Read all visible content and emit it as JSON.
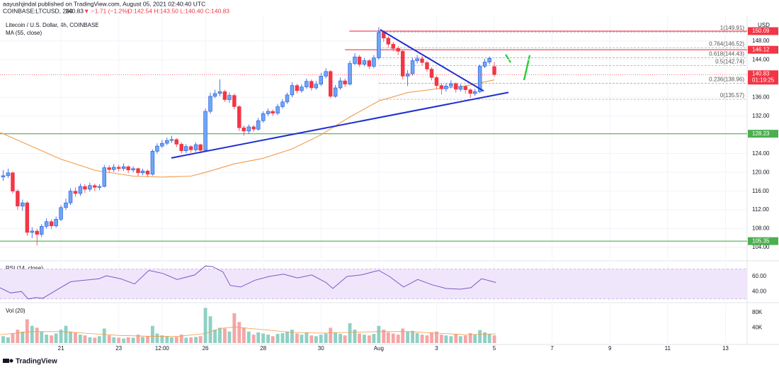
{
  "header": {
    "publisher": "aayushjindal published on TradingView.com, August 05, 2021 02:40:40 UTC",
    "symbol": "COINBASE:LTCUSD, 240",
    "price": "140.83",
    "change": "▼ −1.71 (−1.2%)",
    "ohlc": "O:142.54  H:143.50  L:140.40  C:140.83"
  },
  "footer": "TradingView",
  "chart_data": {
    "type": "candlestick",
    "title": "Litecoin / U.S. Dollar, 4h, COINBASE",
    "currency": "USD",
    "up_color": "#6ea6f2",
    "up_border": "#1e53e5",
    "down_color": "#f23645",
    "x": [
      19,
      19.17,
      19.33,
      19.5,
      19.67,
      19.83,
      20,
      20.17,
      20.33,
      20.5,
      20.67,
      20.83,
      21,
      21.17,
      21.33,
      21.5,
      21.67,
      21.83,
      22,
      22.17,
      22.33,
      22.5,
      22.67,
      22.83,
      23,
      23.17,
      23.33,
      23.5,
      23.67,
      23.83,
      24,
      24.17,
      24.33,
      24.5,
      24.67,
      24.83,
      25,
      25.17,
      25.33,
      25.5,
      25.67,
      25.83,
      26,
      26.17,
      26.33,
      26.5,
      26.67,
      26.83,
      27,
      27.17,
      27.33,
      27.5,
      27.67,
      27.83,
      28,
      28.17,
      28.33,
      28.5,
      28.67,
      28.83,
      29,
      29.17,
      29.33,
      29.5,
      29.67,
      29.83,
      30,
      30.17,
      30.33,
      30.5,
      30.67,
      30.83,
      31,
      31.17,
      31.33,
      31.5,
      31.67,
      31.83,
      32,
      32.17,
      32.33,
      32.5,
      32.67,
      32.83,
      33,
      33.17,
      33.33,
      33.5,
      33.67,
      33.83,
      34,
      34.17,
      34.33,
      34.5,
      34.67,
      34.83,
      35,
      35.17,
      35.33,
      35.5,
      35.67,
      35.83,
      36
    ],
    "open": [
      119.0,
      119.3,
      119.9,
      116.0,
      112.8,
      113.5,
      107.2,
      107.5,
      106.8,
      108.5,
      109.5,
      108.6,
      110.0,
      112.5,
      113.5,
      116.0,
      115.5,
      117.0,
      116.4,
      117.2,
      116.8,
      117.0,
      121.0,
      120.6,
      121.1,
      120.8,
      121.2,
      120.5,
      120.8,
      119.9,
      120.3,
      119.6,
      124.5,
      125.6,
      126.2,
      126.8,
      127.0,
      126.0,
      124.6,
      125.5,
      124.8,
      125.9,
      124.7,
      133.0,
      136.2,
      136.8,
      137.2,
      135.5,
      136.4,
      134.0,
      129.5,
      128.8,
      129.7,
      129.2,
      131.0,
      132.5,
      133.0,
      132.6,
      134.0,
      135.0,
      136.5,
      138.5,
      137.4,
      138.2,
      139.4,
      138.0,
      138.8,
      140.5,
      141.5,
      136.2,
      138.0,
      139.5,
      138.8,
      143.2,
      144.6,
      143.0,
      143.8,
      142.6,
      144.4,
      149.8,
      148.6,
      147.3,
      146.4,
      145.8,
      140.5,
      141.0,
      143.8,
      144.2,
      143.4,
      142.0,
      140.2,
      138.5,
      137.8,
      138.4,
      138.9,
      137.7,
      138.3,
      137.6,
      136.8,
      137.2,
      142.6,
      143.5,
      142.54
    ],
    "high": [
      120.5,
      120.8,
      120.2,
      116.4,
      114.2,
      113.9,
      108.3,
      108.0,
      109.0,
      110.2,
      110.0,
      110.6,
      113.0,
      114.4,
      116.6,
      116.8,
      117.6,
      117.5,
      117.8,
      117.6,
      117.5,
      121.6,
      121.5,
      121.8,
      121.6,
      121.9,
      121.5,
      121.3,
      121.0,
      120.8,
      120.6,
      124.9,
      126.2,
      126.9,
      127.4,
      127.8,
      127.3,
      126.4,
      126.0,
      125.8,
      126.4,
      126.1,
      133.6,
      137.0,
      137.6,
      139.8,
      137.6,
      137.0,
      136.8,
      134.3,
      130.0,
      130.2,
      130.1,
      131.6,
      133.0,
      133.6,
      133.4,
      134.6,
      135.6,
      137.0,
      139.2,
      138.9,
      138.8,
      140.0,
      139.8,
      139.5,
      141.2,
      142.2,
      141.8,
      138.6,
      140.2,
      140.0,
      143.8,
      145.4,
      145.0,
      144.4,
      144.1,
      145.0,
      150.9,
      150.2,
      149.0,
      147.8,
      146.9,
      146.2,
      141.8,
      144.4,
      145.0,
      144.8,
      143.8,
      142.4,
      140.6,
      139.0,
      139.0,
      139.6,
      139.2,
      138.8,
      138.6,
      137.9,
      137.8,
      143.0,
      144.2,
      144.7,
      143.5
    ],
    "low": [
      118.2,
      118.8,
      115.5,
      112.0,
      111.8,
      106.5,
      106.0,
      104.4,
      106.2,
      108.0,
      107.9,
      108.2,
      109.6,
      112.0,
      113.0,
      114.8,
      115.0,
      115.6,
      115.9,
      116.0,
      116.2,
      116.8,
      120.0,
      120.1,
      120.2,
      120.3,
      119.8,
      120.0,
      119.2,
      119.4,
      119.0,
      119.3,
      124.0,
      125.2,
      125.8,
      126.3,
      125.4,
      124.0,
      124.1,
      124.2,
      124.4,
      124.2,
      124.5,
      132.5,
      135.8,
      136.2,
      135.0,
      134.8,
      133.4,
      128.8,
      127.8,
      128.2,
      128.6,
      128.9,
      130.6,
      132.0,
      132.0,
      132.2,
      133.6,
      134.6,
      136.0,
      136.8,
      137.0,
      137.8,
      137.4,
      137.6,
      138.4,
      140.0,
      135.8,
      135.9,
      137.6,
      138.2,
      138.5,
      142.8,
      142.5,
      142.6,
      142.0,
      142.2,
      144.0,
      147.8,
      146.6,
      145.8,
      145.0,
      139.8,
      138.4,
      140.6,
      143.2,
      142.8,
      141.4,
      139.6,
      137.8,
      136.6,
      137.2,
      137.9,
      137.0,
      137.2,
      136.8,
      135.9,
      136.3,
      136.9,
      142.2,
      143.0,
      140.4
    ],
    "close": [
      119.3,
      119.9,
      116.0,
      112.8,
      113.5,
      107.2,
      107.5,
      106.8,
      108.5,
      109.5,
      108.6,
      110.0,
      112.5,
      113.5,
      116.0,
      115.5,
      117.0,
      116.4,
      117.2,
      116.8,
      117.0,
      121.0,
      120.6,
      121.1,
      120.8,
      121.2,
      120.5,
      120.8,
      119.9,
      120.3,
      119.6,
      124.5,
      125.6,
      126.2,
      126.8,
      127.0,
      126.0,
      124.6,
      125.5,
      124.8,
      125.9,
      124.7,
      133.0,
      136.2,
      136.8,
      137.2,
      135.5,
      136.4,
      134.0,
      129.5,
      128.8,
      129.7,
      129.2,
      131.0,
      132.5,
      133.0,
      132.6,
      134.0,
      135.0,
      136.5,
      138.5,
      137.4,
      138.2,
      139.4,
      138.0,
      138.8,
      140.5,
      141.5,
      136.2,
      138.0,
      139.5,
      138.8,
      143.2,
      144.6,
      143.0,
      143.8,
      142.6,
      144.4,
      149.8,
      148.6,
      147.3,
      146.4,
      145.8,
      140.5,
      141.0,
      143.8,
      144.2,
      143.4,
      142.0,
      140.2,
      138.5,
      137.8,
      138.4,
      138.9,
      137.7,
      138.3,
      137.6,
      136.8,
      137.2,
      142.6,
      143.5,
      144.3,
      140.83
    ],
    "xlim": [
      18.89,
      44.75
    ],
    "xticks": [
      21,
      23,
      {
        "value": 24.5,
        "label": "12:00"
      },
      26,
      28,
      30,
      {
        "value": 32,
        "label": "Aug"
      },
      {
        "value": 34,
        "label": "3"
      },
      {
        "value": 36,
        "label": "5"
      },
      {
        "value": 38,
        "label": "7"
      },
      {
        "value": 40,
        "label": "9"
      },
      {
        "value": 42,
        "label": "11"
      },
      {
        "value": 44,
        "label": "13"
      }
    ],
    "ylim": [
      101.6,
      153.4
    ],
    "yticks": [
      {
        "value": 104,
        "label": "104.00"
      },
      {
        "value": 108,
        "label": "108.00"
      },
      {
        "value": 112,
        "label": "112.00"
      },
      {
        "value": 116,
        "label": "116.00"
      },
      {
        "value": 120,
        "label": "120.00"
      },
      {
        "value": 124,
        "label": "124.00"
      },
      {
        "value": 132,
        "label": "132.00"
      },
      {
        "value": 136,
        "label": "136.00"
      },
      {
        "value": 144,
        "label": "144.00"
      },
      {
        "value": 148,
        "label": "148.00"
      }
    ],
    "grid": true,
    "ma": {
      "name": "MA (55, close)",
      "color": "#f29b4a",
      "x": [
        18.9,
        20,
        21,
        22.2,
        23.5,
        24.5,
        25.5,
        26,
        27,
        28,
        29,
        30,
        31,
        32,
        33,
        34,
        35,
        36
      ],
      "values": [
        128.5,
        125.5,
        122.8,
        120.4,
        119.2,
        119.0,
        119.2,
        120.0,
        121.8,
        123.0,
        125.0,
        128.0,
        131.8,
        135.2,
        137.0,
        137.8,
        138.4,
        139.7
      ]
    },
    "trendlines": [
      {
        "color": "#1f2fd1",
        "x": [
          24.82,
          36.49
        ],
        "values": [
          123.07,
          137.03
        ]
      },
      {
        "color": "#1f2fd1",
        "x": [
          32.05,
          35.63
        ],
        "values": [
          150.4,
          137.33
        ]
      }
    ],
    "levels": [
      {
        "value": 150.09,
        "color": "#f23645",
        "start": 30.98
      },
      {
        "value": 146.12,
        "color": "#f23645",
        "start": 30.83
      },
      {
        "value": 128.23,
        "color": "#4caf50",
        "start": 18.89
      },
      {
        "value": 105.35,
        "color": "#4caf50",
        "start": 18.89
      }
    ],
    "fib": {
      "start": 32.0,
      "color": "#9598a1",
      "levels": [
        {
          "value": 149.91,
          "label": "1(149.91)"
        },
        {
          "value": 146.52,
          "label": "0.764(146.52)"
        },
        {
          "value": 144.43,
          "label": "0.618(144.43)"
        },
        {
          "value": 142.74,
          "label": "0.5(142.74)"
        },
        {
          "value": 138.96,
          "label": "0.236(138.96)"
        },
        {
          "value": 135.57,
          "label": "0(135.57)"
        }
      ]
    },
    "last": {
      "value": 140.83,
      "countdown": "01:19:25",
      "color": "#f23645"
    },
    "rsi": {
      "name": "RSI (14, close)",
      "color": "#7e57c2",
      "band_color": "#efe6fc",
      "band": [
        30,
        70
      ],
      "ylim": [
        27,
        77
      ],
      "yticks": [
        {
          "value": 40,
          "label": "40.00"
        },
        {
          "value": 60,
          "label": "60.00"
        }
      ],
      "x": [
        18.89,
        19.26,
        19.63,
        19.87,
        20.12,
        20.37,
        20.85,
        21.34,
        21.83,
        22.32,
        22.57,
        23.06,
        23.55,
        24.04,
        24.53,
        25.02,
        25.63,
        26.0,
        26.25,
        26.61,
        26.86,
        27.22,
        27.72,
        28.21,
        28.7,
        29.19,
        29.68,
        30.17,
        30.41,
        30.9,
        31.39,
        32.0,
        32.37,
        32.86,
        33.35,
        33.84,
        34.33,
        34.82,
        35.19,
        35.56,
        36.05
      ],
      "values": [
        45,
        38,
        40,
        30,
        32,
        31,
        42,
        53,
        55,
        57,
        61,
        57,
        50,
        68,
        64,
        56,
        62,
        74,
        73,
        66,
        48,
        46,
        55,
        60,
        63,
        58,
        62,
        52,
        44,
        60,
        62,
        68,
        60,
        46,
        56,
        49,
        44,
        43,
        45,
        57,
        52
      ]
    },
    "volume": {
      "name": "Vol (20)",
      "up_color": "#8fd0c4",
      "down_color": "#f5a6a6",
      "ylim": [
        0,
        100000
      ],
      "yticks": [
        {
          "value": 40000,
          "label": "40K"
        },
        {
          "value": 80000,
          "label": "80K"
        }
      ],
      "values": [
        18000,
        15000,
        25000,
        35000,
        30000,
        62000,
        45000,
        40000,
        30000,
        22000,
        20000,
        25000,
        35000,
        45000,
        30000,
        28000,
        22000,
        20000,
        15000,
        14000,
        18000,
        38000,
        20000,
        15000,
        14000,
        12000,
        15000,
        14000,
        22000,
        16000,
        18000,
        45000,
        25000,
        20000,
        18000,
        15000,
        16000,
        22000,
        14000,
        15000,
        16000,
        18000,
        92000,
        70000,
        35000,
        40000,
        38000,
        30000,
        78000,
        55000,
        40000,
        30000,
        22000,
        28000,
        25000,
        22000,
        18000,
        24000,
        26000,
        30000,
        35000,
        25000,
        22000,
        28000,
        20000,
        18000,
        22000,
        25000,
        40000,
        28000,
        24000,
        20000,
        52000,
        35000,
        25000,
        22000,
        20000,
        24000,
        45000,
        35000,
        28000,
        25000,
        22000,
        38000,
        30000,
        32000,
        26000,
        22000,
        20000,
        28000,
        30000,
        22000,
        20000,
        18000,
        24000,
        18000,
        20000,
        26000,
        22000,
        34000,
        28000,
        24000,
        20000
      ],
      "ma": {
        "color": "#f29b4a",
        "x": [
          18.9,
          20,
          21,
          22,
          23,
          24,
          25,
          26,
          26.5,
          27,
          28,
          29,
          30,
          31,
          32,
          33,
          34,
          35,
          36.05
        ],
        "values": [
          22000,
          30000,
          30000,
          25000,
          20000,
          18000,
          17000,
          25000,
          38000,
          42000,
          35000,
          28000,
          26000,
          28000,
          30000,
          30000,
          26000,
          22000,
          24000
        ]
      }
    }
  }
}
